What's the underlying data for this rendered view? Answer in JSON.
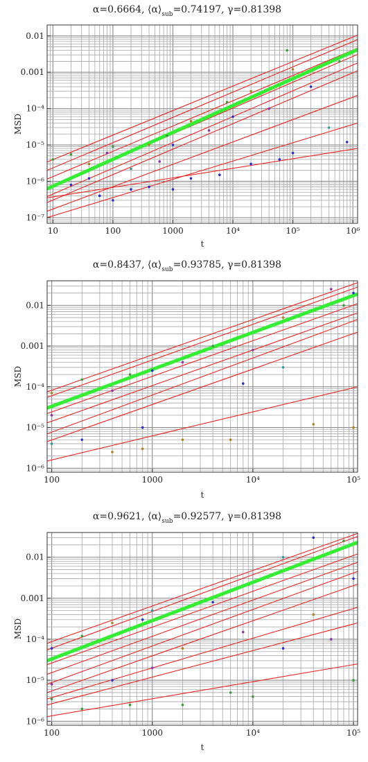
{
  "chart_data": [
    {
      "type": "scatter",
      "title": "α=0.6664, ⟨α⟩sub=0.74197, γ=0.81398",
      "title_parts": {
        "p1": "α=0.6664, ⟨α⟩",
        "sub": "sub",
        "p2": "=0.74197, γ=0.81398"
      },
      "xlabel": "t",
      "ylabel": "MSD",
      "xscale": "log",
      "yscale": "log",
      "xlim": [
        8,
        1200000
      ],
      "ylim": [
        7e-08,
        0.02
      ],
      "grid": true,
      "xticks": [
        {
          "value": 10,
          "label": "10"
        },
        {
          "value": 100,
          "label": "100"
        },
        {
          "value": 1000,
          "label": "1000"
        },
        {
          "value": 10000,
          "label": "10⁴"
        },
        {
          "value": 100000,
          "label": "10⁵"
        },
        {
          "value": 1000000,
          "label": "10⁶"
        }
      ],
      "yticks": [
        {
          "value": 1e-07,
          "label": "10⁻⁷"
        },
        {
          "value": 1e-06,
          "label": "10⁻⁶"
        },
        {
          "value": 1e-05,
          "label": "10⁻⁵"
        },
        {
          "value": 0.0001,
          "label": "10⁻⁴"
        },
        {
          "value": 0.001,
          "label": "0.001"
        },
        {
          "value": 0.01,
          "label": "0.01"
        }
      ],
      "mean_fit": {
        "color": "#33ee33",
        "x": [
          8,
          1200000
        ],
        "y": [
          6.2e-07,
          0.0042
        ]
      },
      "fits": [
        {
          "color": "#ee2222",
          "x": [
            8,
            1200000
          ],
          "y": [
            3.4e-06,
            0.0105
          ]
        },
        {
          "color": "#ee2222",
          "x": [
            8,
            1200000
          ],
          "y": [
            2e-06,
            0.0079
          ]
        },
        {
          "color": "#ee2222",
          "x": [
            8,
            1200000
          ],
          "y": [
            1.15e-06,
            0.0046
          ]
        },
        {
          "color": "#ee2222",
          "x": [
            8,
            1200000
          ],
          "y": [
            6.5e-07,
            0.0031
          ]
        },
        {
          "color": "#ee2222",
          "x": [
            8,
            1200000
          ],
          "y": [
            3.8e-07,
            0.0018
          ]
        },
        {
          "color": "#ee2222",
          "x": [
            8,
            1200000
          ],
          "y": [
            2.6e-07,
            0.0011
          ]
        },
        {
          "color": "#ee2222",
          "x": [
            8,
            1200000
          ],
          "y": [
            1.5e-07,
            0.00023
          ]
        },
        {
          "color": "#ee2222",
          "x": [
            8,
            1200000
          ],
          "y": [
            1e-07,
            4e-05
          ]
        },
        {
          "color": "#ee2222",
          "x": [
            8,
            1200000
          ],
          "y": [
            3.5e-07,
            8e-06
          ]
        }
      ],
      "points": [
        {
          "x": 10,
          "y": 4e-06,
          "color": "#3a9a3a"
        },
        {
          "x": 20,
          "y": 5.5e-06,
          "color": "#3a9a3a"
        },
        {
          "x": 20,
          "y": 8e-07,
          "color": "#2a2ad0"
        },
        {
          "x": 40,
          "y": 1.2e-06,
          "color": "#2a2ad0"
        },
        {
          "x": 40,
          "y": 3e-06,
          "color": "#b08020"
        },
        {
          "x": 60,
          "y": 4e-07,
          "color": "#2a2ad0"
        },
        {
          "x": 80,
          "y": 6e-06,
          "color": "#8a30b0"
        },
        {
          "x": 100,
          "y": 9e-06,
          "color": "#3a9a3a"
        },
        {
          "x": 100,
          "y": 3e-07,
          "color": "#2a2ad0"
        },
        {
          "x": 200,
          "y": 2.2e-06,
          "color": "#2a9a9a"
        },
        {
          "x": 200,
          "y": 6e-07,
          "color": "#2a2ad0"
        },
        {
          "x": 400,
          "y": 1e-05,
          "color": "#b08020"
        },
        {
          "x": 400,
          "y": 7e-07,
          "color": "#2a2ad0"
        },
        {
          "x": 600,
          "y": 3.5e-06,
          "color": "#8a30b0"
        },
        {
          "x": 800,
          "y": 1.8e-05,
          "color": "#3a9a3a"
        },
        {
          "x": 1000,
          "y": 6e-07,
          "color": "#2a2ad0"
        },
        {
          "x": 1000,
          "y": 1e-05,
          "color": "#2a2ad0"
        },
        {
          "x": 2000,
          "y": 4.5e-05,
          "color": "#b08020"
        },
        {
          "x": 2000,
          "y": 1.2e-06,
          "color": "#2a2ad0"
        },
        {
          "x": 4000,
          "y": 2.5e-05,
          "color": "#8a30b0"
        },
        {
          "x": 6000,
          "y": 1.5e-06,
          "color": "#2a2ad0"
        },
        {
          "x": 8000,
          "y": 0.00015,
          "color": "#3a9a3a"
        },
        {
          "x": 10000,
          "y": 6e-05,
          "color": "#2a2ad0"
        },
        {
          "x": 20000,
          "y": 3e-06,
          "color": "#2a2ad0"
        },
        {
          "x": 20000,
          "y": 0.0003,
          "color": "#b08020"
        },
        {
          "x": 40000,
          "y": 0.0001,
          "color": "#8a30b0"
        },
        {
          "x": 60000,
          "y": 4e-06,
          "color": "#2a2ad0"
        },
        {
          "x": 80000,
          "y": 0.004,
          "color": "#3a9a3a"
        },
        {
          "x": 100000,
          "y": 0.0012,
          "color": "#b08020"
        },
        {
          "x": 100000,
          "y": 6e-06,
          "color": "#2a2ad0"
        },
        {
          "x": 200000,
          "y": 0.0004,
          "color": "#2a2ad0"
        },
        {
          "x": 400000,
          "y": 3e-05,
          "color": "#2a9a9a"
        },
        {
          "x": 600000,
          "y": 0.002,
          "color": "#3a9a3a"
        },
        {
          "x": 800000,
          "y": 1.2e-05,
          "color": "#2a2ad0"
        }
      ]
    },
    {
      "type": "scatter",
      "title": "α=0.8437, ⟨α⟩sub=0.93785, γ=0.81398",
      "title_parts": {
        "p1": "α=0.8437, ⟨α⟩",
        "sub": "sub",
        "p2": "=0.93785, γ=0.81398"
      },
      "xlabel": "t",
      "ylabel": "MSD",
      "xscale": "log",
      "yscale": "log",
      "xlim": [
        90,
        110000
      ],
      "ylim": [
        8e-07,
        0.04
      ],
      "grid": true,
      "xticks": [
        {
          "value": 100,
          "label": "100"
        },
        {
          "value": 1000,
          "label": "1000"
        },
        {
          "value": 10000,
          "label": "10⁴"
        },
        {
          "value": 100000,
          "label": "10⁵"
        }
      ],
      "yticks": [
        {
          "value": 1e-06,
          "label": "10⁻⁶"
        },
        {
          "value": 1e-05,
          "label": "10⁻⁵"
        },
        {
          "value": 0.0001,
          "label": "10⁻⁴"
        },
        {
          "value": 0.001,
          "label": "0.001"
        },
        {
          "value": 0.01,
          "label": "0.01"
        }
      ],
      "mean_fit": {
        "color": "#33ee33",
        "x": [
          90,
          110000
        ],
        "y": [
          3e-05,
          0.019
        ]
      },
      "fits": [
        {
          "color": "#ee2222",
          "x": [
            90,
            110000
          ],
          "y": [
            7.5e-05,
            0.036
          ]
        },
        {
          "color": "#ee2222",
          "x": [
            90,
            110000
          ],
          "y": [
            5.5e-05,
            0.028
          ]
        },
        {
          "color": "#ee2222",
          "x": [
            90,
            110000
          ],
          "y": [
            2.2e-05,
            0.011
          ]
        },
        {
          "color": "#ee2222",
          "x": [
            90,
            110000
          ],
          "y": [
            1.3e-05,
            0.0065
          ]
        },
        {
          "color": "#ee2222",
          "x": [
            90,
            110000
          ],
          "y": [
            7e-06,
            0.0045
          ]
        },
        {
          "color": "#ee2222",
          "x": [
            90,
            110000
          ],
          "y": [
            4.5e-06,
            0.0022
          ]
        },
        {
          "color": "#ee2222",
          "x": [
            90,
            110000
          ],
          "y": [
            1.5e-06,
            0.0001
          ]
        }
      ],
      "points": [
        {
          "x": 100,
          "y": 7e-05,
          "color": "#b08020"
        },
        {
          "x": 100,
          "y": 4e-06,
          "color": "#2a9a9a"
        },
        {
          "x": 100,
          "y": 2e-05,
          "color": "#8a30b0"
        },
        {
          "x": 200,
          "y": 0.00015,
          "color": "#3a9a3a"
        },
        {
          "x": 200,
          "y": 5e-06,
          "color": "#2a2ad0"
        },
        {
          "x": 400,
          "y": 2.5e-06,
          "color": "#b08020"
        },
        {
          "x": 400,
          "y": 8e-05,
          "color": "#8a30b0"
        },
        {
          "x": 600,
          "y": 0.0002,
          "color": "#3a9a3a"
        },
        {
          "x": 800,
          "y": 1e-05,
          "color": "#2a2ad0"
        },
        {
          "x": 800,
          "y": 3e-06,
          "color": "#b08020"
        },
        {
          "x": 1000,
          "y": 0.00025,
          "color": "#2a2ad0"
        },
        {
          "x": 2000,
          "y": 5e-06,
          "color": "#b08020"
        },
        {
          "x": 2000,
          "y": 0.0004,
          "color": "#8a30b0"
        },
        {
          "x": 4000,
          "y": 0.001,
          "color": "#3a9a3a"
        },
        {
          "x": 6000,
          "y": 5e-06,
          "color": "#b08020"
        },
        {
          "x": 8000,
          "y": 0.00012,
          "color": "#2a2ad0"
        },
        {
          "x": 10000,
          "y": 0.0008,
          "color": "#8a30b0"
        },
        {
          "x": 20000,
          "y": 0.005,
          "color": "#b08020"
        },
        {
          "x": 20000,
          "y": 0.0003,
          "color": "#2a9a9a"
        },
        {
          "x": 40000,
          "y": 1.2e-05,
          "color": "#b08020"
        },
        {
          "x": 60000,
          "y": 0.025,
          "color": "#8a30b0"
        },
        {
          "x": 80000,
          "y": 0.01,
          "color": "#3a9a3a"
        },
        {
          "x": 100000,
          "y": 1e-05,
          "color": "#b08020"
        },
        {
          "x": 100000,
          "y": 0.02,
          "color": "#2a2ad0"
        }
      ]
    },
    {
      "type": "scatter",
      "title": "α=0.9621, ⟨α⟩sub=0.92577, γ=0.81398",
      "title_parts": {
        "p1": "α=0.9621, ⟨α⟩",
        "sub": "sub",
        "p2": "=0.92577, γ=0.81398"
      },
      "xlabel": "t",
      "ylabel": "MSD",
      "xscale": "log",
      "yscale": "log",
      "xlim": [
        90,
        110000
      ],
      "ylim": [
        8e-07,
        0.04
      ],
      "grid": true,
      "xticks": [
        {
          "value": 100,
          "label": "100"
        },
        {
          "value": 1000,
          "label": "1000"
        },
        {
          "value": 10000,
          "label": "10⁴"
        },
        {
          "value": 100000,
          "label": "10⁵"
        }
      ],
      "yticks": [
        {
          "value": 1e-06,
          "label": "10⁻⁶"
        },
        {
          "value": 1e-05,
          "label": "10⁻⁵"
        },
        {
          "value": 0.0001,
          "label": "10⁻⁴"
        },
        {
          "value": 0.001,
          "label": "0.001"
        },
        {
          "value": 0.01,
          "label": "0.01"
        }
      ],
      "mean_fit": {
        "color": "#33ee33",
        "x": [
          90,
          110000
        ],
        "y": [
          3e-05,
          0.023
        ]
      },
      "fits": [
        {
          "color": "#ee2222",
          "x": [
            90,
            110000
          ],
          "y": [
            8e-05,
            0.038
          ]
        },
        {
          "color": "#ee2222",
          "x": [
            90,
            110000
          ],
          "y": [
            5.5e-05,
            0.032
          ]
        },
        {
          "color": "#ee2222",
          "x": [
            90,
            110000
          ],
          "y": [
            2.4e-05,
            0.012
          ]
        },
        {
          "color": "#ee2222",
          "x": [
            90,
            110000
          ],
          "y": [
            1.4e-05,
            0.0075
          ]
        },
        {
          "color": "#ee2222",
          "x": [
            90,
            110000
          ],
          "y": [
            8e-06,
            0.0045
          ]
        },
        {
          "color": "#ee2222",
          "x": [
            90,
            110000
          ],
          "y": [
            5e-06,
            0.0022
          ]
        },
        {
          "color": "#ee2222",
          "x": [
            90,
            110000
          ],
          "y": [
            3.5e-06,
            0.0006
          ]
        },
        {
          "color": "#ee2222",
          "x": [
            90,
            110000
          ],
          "y": [
            2.5e-06,
            0.00025
          ]
        },
        {
          "color": "#ee2222",
          "x": [
            90,
            110000
          ],
          "y": [
            1.3e-06,
            2.5e-05
          ]
        }
      ],
      "points": [
        {
          "x": 100,
          "y": 6e-05,
          "color": "#2a2ad0"
        },
        {
          "x": 100,
          "y": 3.5e-06,
          "color": "#3a9a3a"
        },
        {
          "x": 100,
          "y": 8e-06,
          "color": "#8a30b0"
        },
        {
          "x": 200,
          "y": 0.00012,
          "color": "#3a9a3a"
        },
        {
          "x": 200,
          "y": 2e-06,
          "color": "#3a9a3a"
        },
        {
          "x": 400,
          "y": 1e-05,
          "color": "#2a2ad0"
        },
        {
          "x": 400,
          "y": 0.00025,
          "color": "#b08020"
        },
        {
          "x": 600,
          "y": 2.5e-06,
          "color": "#3a9a3a"
        },
        {
          "x": 800,
          "y": 0.0003,
          "color": "#2a2ad0"
        },
        {
          "x": 1000,
          "y": 2e-05,
          "color": "#8a30b0"
        },
        {
          "x": 1000,
          "y": 0.0005,
          "color": "#2a9a9a"
        },
        {
          "x": 2000,
          "y": 2.5e-06,
          "color": "#3a9a3a"
        },
        {
          "x": 2000,
          "y": 6e-05,
          "color": "#b08020"
        },
        {
          "x": 4000,
          "y": 0.0008,
          "color": "#2a2ad0"
        },
        {
          "x": 6000,
          "y": 5e-06,
          "color": "#3a9a3a"
        },
        {
          "x": 8000,
          "y": 0.00015,
          "color": "#8a30b0"
        },
        {
          "x": 10000,
          "y": 4e-06,
          "color": "#3a9a3a"
        },
        {
          "x": 20000,
          "y": 0.01,
          "color": "#2a9a9a"
        },
        {
          "x": 20000,
          "y": 6e-05,
          "color": "#2a2ad0"
        },
        {
          "x": 40000,
          "y": 0.03,
          "color": "#2a2ad0"
        },
        {
          "x": 40000,
          "y": 0.0004,
          "color": "#b08020"
        },
        {
          "x": 60000,
          "y": 0.0001,
          "color": "#8a30b0"
        },
        {
          "x": 80000,
          "y": 0.025,
          "color": "#3a9a3a"
        },
        {
          "x": 100000,
          "y": 1e-05,
          "color": "#3a9a3a"
        },
        {
          "x": 100000,
          "y": 0.003,
          "color": "#2a2ad0"
        }
      ]
    }
  ]
}
